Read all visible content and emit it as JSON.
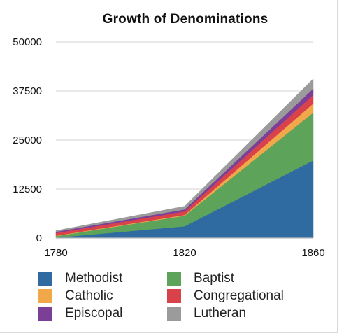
{
  "chart_data": {
    "type": "area",
    "stacked": true,
    "title": "Growth of Denominations",
    "xlabel": "",
    "ylabel": "",
    "x": [
      1780,
      1820,
      1860
    ],
    "x_ticks": [
      "1780",
      "1820",
      "1860"
    ],
    "y_ticks": [
      "0",
      "12500",
      "25000",
      "37500",
      "50000"
    ],
    "ylim": [
      0,
      50000
    ],
    "grid": true,
    "legend_position": "bottom",
    "series": [
      {
        "name": "Methodist",
        "color": "#2f6aa0",
        "values": [
          100,
          3000,
          19800
        ]
      },
      {
        "name": "Baptist",
        "color": "#5da35a",
        "values": [
          400,
          2700,
          12200
        ]
      },
      {
        "name": "Catholic",
        "color": "#f0a84a",
        "values": [
          100,
          200,
          2300
        ]
      },
      {
        "name": "Congregational",
        "color": "#d9424a",
        "values": [
          700,
          900,
          2200
        ]
      },
      {
        "name": "Episcopal",
        "color": "#7b3f98",
        "values": [
          300,
          500,
          1600
        ]
      },
      {
        "name": "Lutheran",
        "color": "#9b9b9b",
        "values": [
          300,
          800,
          2500
        ]
      }
    ],
    "legend_order": [
      "Methodist",
      "Baptist",
      "Catholic",
      "Congregational",
      "Episcopal",
      "Lutheran"
    ]
  }
}
